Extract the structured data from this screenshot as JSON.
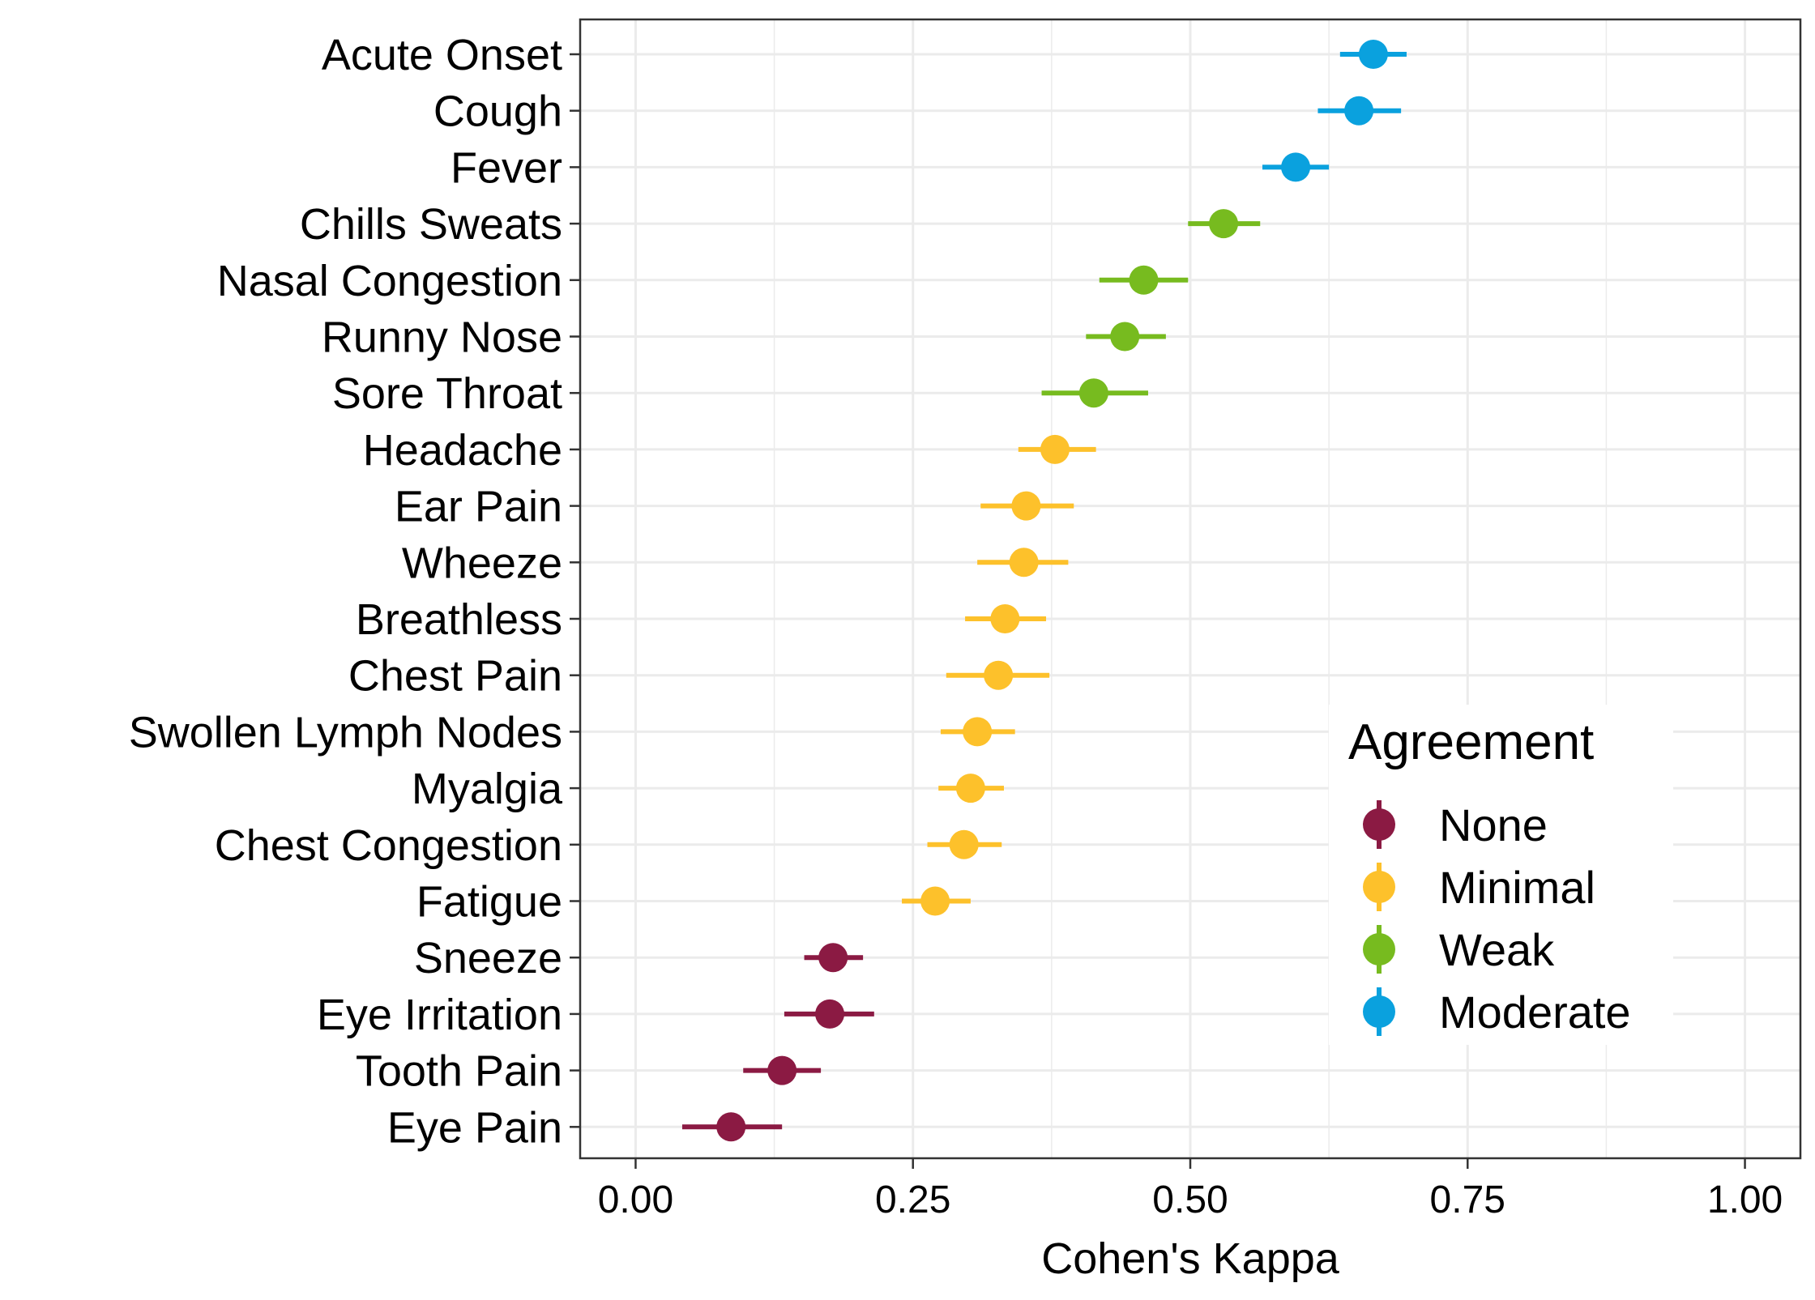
{
  "chart_data": {
    "type": "scatter",
    "subtype": "point-range",
    "title": "",
    "xlabel": "Cohen's Kappa",
    "ylabel": "",
    "xlim": [
      -0.05,
      1.05
    ],
    "x_ticks": [
      0.0,
      0.25,
      0.5,
      0.75,
      1.0
    ],
    "x_tick_labels": [
      "0.00",
      "0.25",
      "0.50",
      "0.75",
      "1.00"
    ],
    "grid": true,
    "categories": [
      "Acute Onset",
      "Cough",
      "Fever",
      "Chills Sweats",
      "Nasal Congestion",
      "Runny Nose",
      "Sore Throat",
      "Headache",
      "Ear Pain",
      "Wheeze",
      "Breathless",
      "Chest Pain",
      "Swollen Lymph Nodes",
      "Myalgia",
      "Chest Congestion",
      "Fatigue",
      "Sneeze",
      "Eye Irritation",
      "Tooth Pain",
      "Eye Pain"
    ],
    "points": [
      {
        "label": "Acute Onset",
        "kappa": 0.665,
        "lower": 0.635,
        "upper": 0.695,
        "agreement": "Moderate"
      },
      {
        "label": "Cough",
        "kappa": 0.652,
        "lower": 0.615,
        "upper": 0.69,
        "agreement": "Moderate"
      },
      {
        "label": "Fever",
        "kappa": 0.595,
        "lower": 0.565,
        "upper": 0.625,
        "agreement": "Moderate"
      },
      {
        "label": "Chills Sweats",
        "kappa": 0.53,
        "lower": 0.498,
        "upper": 0.563,
        "agreement": "Weak"
      },
      {
        "label": "Nasal Congestion",
        "kappa": 0.458,
        "lower": 0.418,
        "upper": 0.498,
        "agreement": "Weak"
      },
      {
        "label": "Runny Nose",
        "kappa": 0.441,
        "lower": 0.406,
        "upper": 0.478,
        "agreement": "Weak"
      },
      {
        "label": "Sore Throat",
        "kappa": 0.413,
        "lower": 0.366,
        "upper": 0.462,
        "agreement": "Weak"
      },
      {
        "label": "Headache",
        "kappa": 0.378,
        "lower": 0.345,
        "upper": 0.415,
        "agreement": "Minimal"
      },
      {
        "label": "Ear Pain",
        "kappa": 0.352,
        "lower": 0.311,
        "upper": 0.395,
        "agreement": "Minimal"
      },
      {
        "label": "Wheeze",
        "kappa": 0.35,
        "lower": 0.308,
        "upper": 0.39,
        "agreement": "Minimal"
      },
      {
        "label": "Breathless",
        "kappa": 0.333,
        "lower": 0.297,
        "upper": 0.37,
        "agreement": "Minimal"
      },
      {
        "label": "Chest Pain",
        "kappa": 0.327,
        "lower": 0.28,
        "upper": 0.373,
        "agreement": "Minimal"
      },
      {
        "label": "Swollen Lymph Nodes",
        "kappa": 0.308,
        "lower": 0.275,
        "upper": 0.342,
        "agreement": "Minimal"
      },
      {
        "label": "Myalgia",
        "kappa": 0.302,
        "lower": 0.273,
        "upper": 0.332,
        "agreement": "Minimal"
      },
      {
        "label": "Chest Congestion",
        "kappa": 0.296,
        "lower": 0.263,
        "upper": 0.33,
        "agreement": "Minimal"
      },
      {
        "label": "Fatigue",
        "kappa": 0.27,
        "lower": 0.24,
        "upper": 0.302,
        "agreement": "Minimal"
      },
      {
        "label": "Sneeze",
        "kappa": 0.178,
        "lower": 0.152,
        "upper": 0.205,
        "agreement": "None"
      },
      {
        "label": "Eye Irritation",
        "kappa": 0.175,
        "lower": 0.134,
        "upper": 0.215,
        "agreement": "None"
      },
      {
        "label": "Tooth Pain",
        "kappa": 0.132,
        "lower": 0.097,
        "upper": 0.167,
        "agreement": "None"
      },
      {
        "label": "Eye Pain",
        "kappa": 0.086,
        "lower": 0.042,
        "upper": 0.132,
        "agreement": "None"
      }
    ],
    "legend": {
      "title": "Agreement",
      "placement": "bottom-right",
      "entries": [
        {
          "label": "None",
          "color": "#8B1A43"
        },
        {
          "label": "Minimal",
          "color": "#FDC12B"
        },
        {
          "label": "Weak",
          "color": "#77BB1F"
        },
        {
          "label": "Moderate",
          "color": "#0AA1DE"
        }
      ]
    }
  }
}
